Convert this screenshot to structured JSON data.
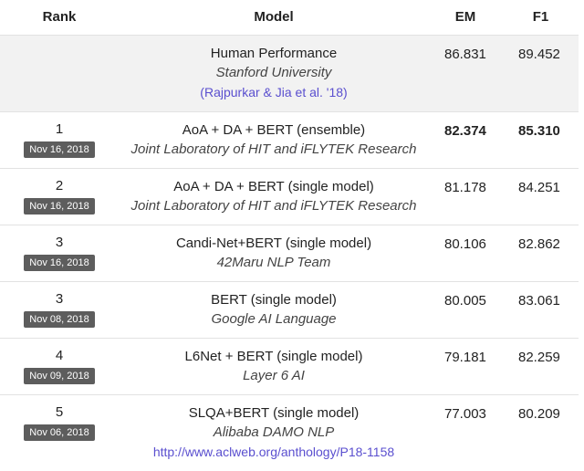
{
  "header": {
    "rank": "Rank",
    "model": "Model",
    "em": "EM",
    "f1": "F1"
  },
  "human": {
    "name": "Human Performance",
    "org": "Stanford University",
    "reference": "(Rajpurkar & Jia et al. '18)",
    "em": "86.831",
    "f1": "89.452"
  },
  "rows": [
    {
      "rank": "1",
      "date": "Nov 16, 2018",
      "name": "AoA + DA + BERT (ensemble)",
      "org": "Joint Laboratory of HIT and iFLYTEK Research",
      "em": "82.374",
      "f1": "85.310"
    },
    {
      "rank": "2",
      "date": "Nov 16, 2018",
      "name": "AoA + DA + BERT (single model)",
      "org": "Joint Laboratory of HIT and iFLYTEK Research",
      "em": "81.178",
      "f1": "84.251"
    },
    {
      "rank": "3",
      "date": "Nov 16, 2018",
      "name": "Candi-Net+BERT (single model)",
      "org": "42Maru NLP Team",
      "em": "80.106",
      "f1": "82.862"
    },
    {
      "rank": "3",
      "date": "Nov 08, 2018",
      "name": "BERT (single model)",
      "org": "Google AI Language",
      "em": "80.005",
      "f1": "83.061"
    },
    {
      "rank": "4",
      "date": "Nov 09, 2018",
      "name": "L6Net + BERT (single model)",
      "org": "Layer 6 AI",
      "em": "79.181",
      "f1": "82.259"
    },
    {
      "rank": "5",
      "date": "Nov 06, 2018",
      "name": "SLQA+BERT (single model)",
      "org": "Alibaba DAMO NLP",
      "link": "http://www.aclweb.org/anthology/P18-1158",
      "em": "77.003",
      "f1": "80.209"
    }
  ]
}
